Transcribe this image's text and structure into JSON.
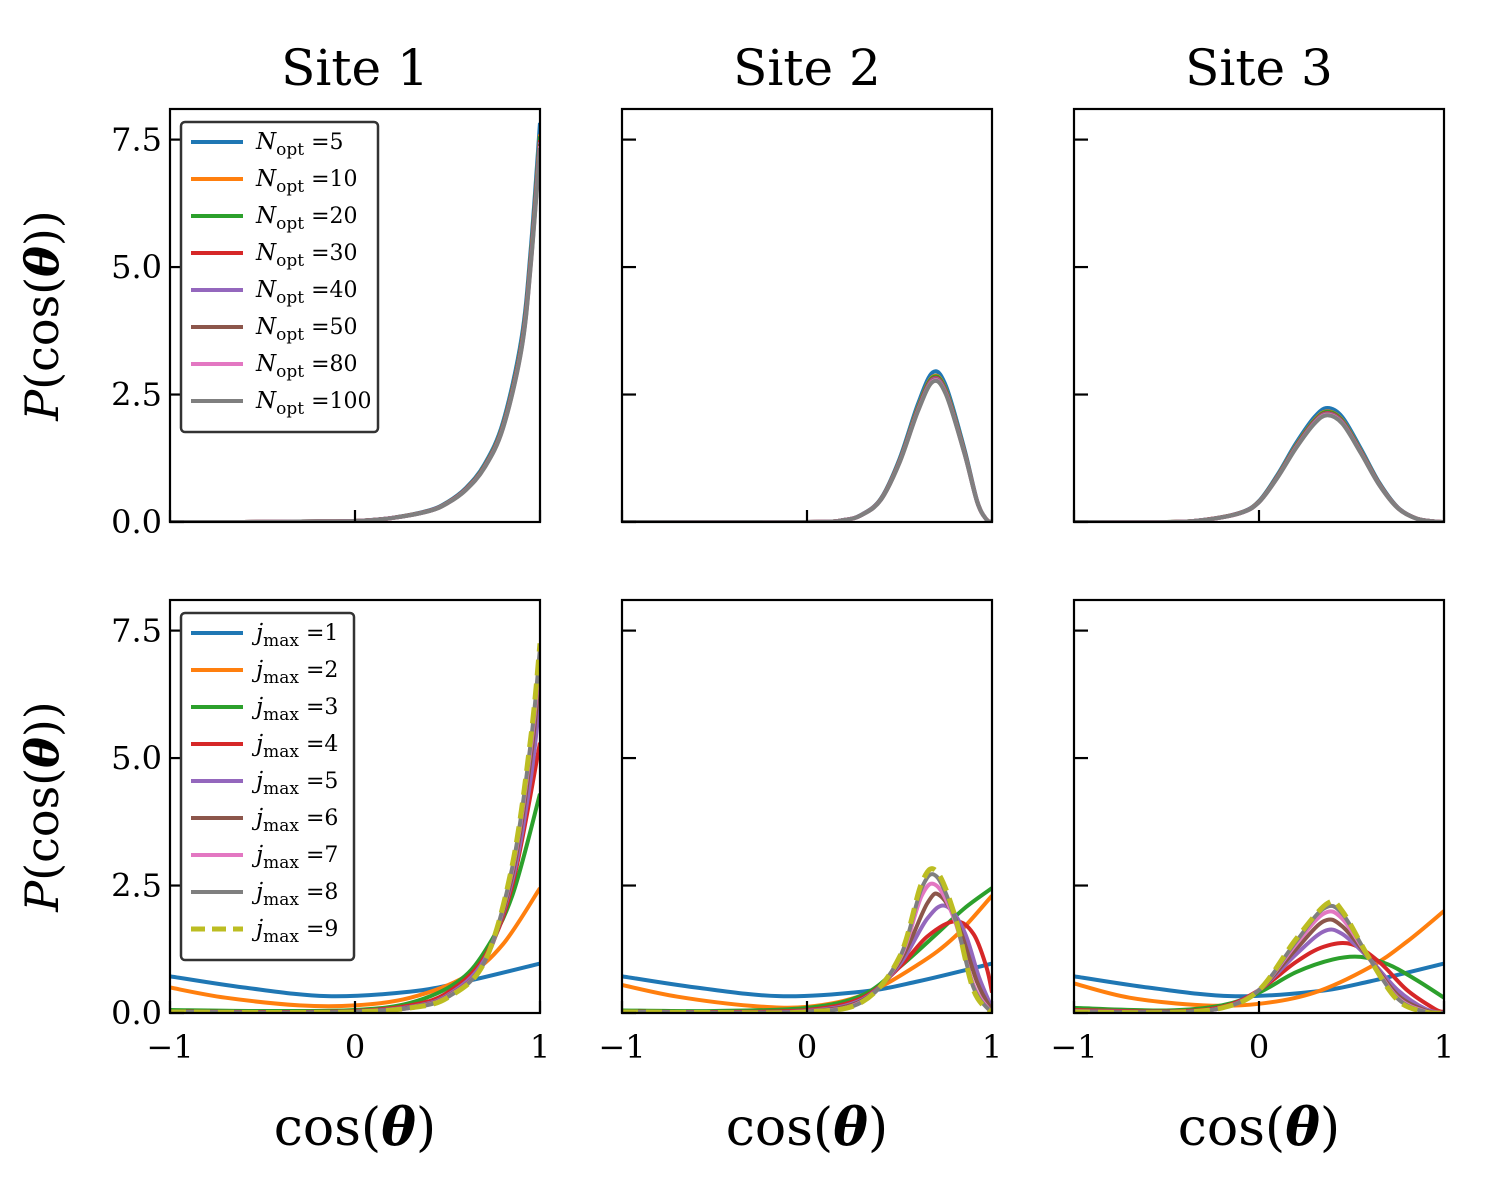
{
  "chart_data": {
    "type": "line",
    "layout": "2x3 grid",
    "column_titles": [
      "Site 1",
      "Site 2",
      "Site 3"
    ],
    "xlabel": "cos(θ)",
    "ylabel": "P(cos(θ))",
    "xlim": [
      -1,
      1
    ],
    "ylim": [
      0,
      8.1
    ],
    "xticks": [
      -1,
      0,
      1
    ],
    "xtick_labels": [
      "−1",
      "0",
      "1"
    ],
    "yticks": [
      0,
      2.5,
      5.0,
      7.5
    ],
    "ytick_labels": [
      "0.0",
      "2.5",
      "5.0",
      "7.5"
    ],
    "legend_position": "upper left",
    "rows": [
      {
        "legend_symbol": "N",
        "legend_subscript": "opt",
        "legend_style": "italic",
        "series": [
          {
            "value": "5",
            "color": "#1f77b4",
            "dash": "solid"
          },
          {
            "value": "10",
            "color": "#ff7f0e",
            "dash": "solid"
          },
          {
            "value": "20",
            "color": "#2ca02c",
            "dash": "solid"
          },
          {
            "value": "30",
            "color": "#d62728",
            "dash": "solid"
          },
          {
            "value": "40",
            "color": "#9467bd",
            "dash": "solid"
          },
          {
            "value": "50",
            "color": "#8c564b",
            "dash": "solid"
          },
          {
            "value": "80",
            "color": "#e377c2",
            "dash": "solid"
          },
          {
            "value": "100",
            "color": "#7f7f7f",
            "dash": "solid"
          }
        ],
        "panels": [
          {
            "site": "Site 1",
            "x": [
              -1,
              -0.6,
              -0.3,
              0,
              0.2,
              0.4,
              0.5,
              0.6,
              0.7,
              0.8,
              0.9,
              0.95,
              1.0
            ],
            "y": [
              0.0,
              0.0,
              0.01,
              0.02,
              0.08,
              0.22,
              0.38,
              0.65,
              1.1,
              1.9,
              3.5,
              5.2,
              7.6
            ]
          },
          {
            "site": "Site 2",
            "x": [
              -1,
              0,
              0.2,
              0.3,
              0.4,
              0.5,
              0.6,
              0.68,
              0.75,
              0.85,
              0.92,
              0.97,
              1.0
            ],
            "y": [
              0.0,
              0.0,
              0.04,
              0.15,
              0.45,
              1.2,
              2.25,
              2.85,
              2.6,
              1.4,
              0.4,
              0.05,
              0.0
            ]
          },
          {
            "site": "Site 3",
            "x": [
              -1,
              -0.5,
              -0.3,
              -0.1,
              0.0,
              0.1,
              0.2,
              0.3,
              0.37,
              0.45,
              0.55,
              0.65,
              0.75,
              0.85,
              0.95,
              1.0
            ],
            "y": [
              0.0,
              0.0,
              0.04,
              0.18,
              0.4,
              0.9,
              1.5,
              2.0,
              2.17,
              2.0,
              1.4,
              0.75,
              0.28,
              0.07,
              0.01,
              0.0
            ]
          }
        ]
      },
      {
        "legend_symbol": "j",
        "legend_subscript": "max",
        "legend_style": "italic",
        "series": [
          {
            "value": "1",
            "color": "#1f77b4",
            "dash": "solid"
          },
          {
            "value": "2",
            "color": "#ff7f0e",
            "dash": "solid"
          },
          {
            "value": "3",
            "color": "#2ca02c",
            "dash": "solid"
          },
          {
            "value": "4",
            "color": "#d62728",
            "dash": "solid"
          },
          {
            "value": "5",
            "color": "#9467bd",
            "dash": "solid"
          },
          {
            "value": "6",
            "color": "#8c564b",
            "dash": "solid"
          },
          {
            "value": "7",
            "color": "#e377c2",
            "dash": "solid"
          },
          {
            "value": "8",
            "color": "#7f7f7f",
            "dash": "solid"
          },
          {
            "value": "9",
            "color": "#bcbd22",
            "dash": "dashed"
          }
        ],
        "panels": [
          {
            "site": "Site 1",
            "curves": [
              {
                "x": [
                  -1,
                  -0.6,
                  -0.15,
                  0.3,
                  0.6,
                  1.0
                ],
                "y": [
                  0.72,
                  0.5,
                  0.33,
                  0.42,
                  0.62,
                  0.97
                ]
              },
              {
                "x": [
                  -1,
                  -0.7,
                  -0.3,
                  0.0,
                  0.3,
                  0.6,
                  0.8,
                  1.0
                ],
                "y": [
                  0.5,
                  0.3,
                  0.15,
                  0.15,
                  0.3,
                  0.72,
                  1.35,
                  2.45
                ]
              },
              {
                "x": [
                  -1,
                  -0.5,
                  0,
                  0.3,
                  0.55,
                  0.7,
                  0.85,
                  1.0
                ],
                "y": [
                  0.06,
                  0.04,
                  0.06,
                  0.2,
                  0.6,
                  1.2,
                  2.3,
                  4.3
                ]
              },
              {
                "x": [
                  -1,
                  -0.5,
                  0,
                  0.3,
                  0.5,
                  0.7,
                  0.85,
                  1.0
                ],
                "y": [
                  0.03,
                  0.02,
                  0.04,
                  0.15,
                  0.4,
                  1.1,
                  2.5,
                  5.3
                ]
              },
              {
                "x": [
                  -1,
                  -0.5,
                  0,
                  0.3,
                  0.5,
                  0.7,
                  0.85,
                  0.95,
                  1.0
                ],
                "y": [
                  0.02,
                  0.01,
                  0.03,
                  0.12,
                  0.35,
                  1.05,
                  2.6,
                  4.6,
                  6.2
                ]
              },
              {
                "x": [
                  -1,
                  -0.5,
                  0,
                  0.3,
                  0.5,
                  0.7,
                  0.85,
                  0.95,
                  1.0
                ],
                "y": [
                  0.02,
                  0.01,
                  0.03,
                  0.11,
                  0.33,
                  1.0,
                  2.7,
                  5.0,
                  6.7
                ]
              },
              {
                "x": [
                  -1,
                  -0.5,
                  0,
                  0.3,
                  0.5,
                  0.7,
                  0.85,
                  0.95,
                  1.0
                ],
                "y": [
                  0.02,
                  0.01,
                  0.02,
                  0.1,
                  0.32,
                  1.0,
                  2.8,
                  5.2,
                  7.0
                ]
              },
              {
                "x": [
                  -1,
                  -0.5,
                  0,
                  0.3,
                  0.5,
                  0.7,
                  0.85,
                  0.95,
                  1.0
                ],
                "y": [
                  0.02,
                  0.01,
                  0.02,
                  0.1,
                  0.31,
                  1.0,
                  2.85,
                  5.3,
                  7.15
                ]
              },
              {
                "x": [
                  -1,
                  -0.5,
                  0,
                  0.3,
                  0.5,
                  0.7,
                  0.85,
                  0.95,
                  1.0
                ],
                "y": [
                  0.02,
                  0.01,
                  0.02,
                  0.1,
                  0.3,
                  1.0,
                  2.9,
                  5.4,
                  7.25
                ]
              }
            ]
          },
          {
            "site": "Site 2",
            "curves": [
              {
                "x": [
                  -1,
                  -0.6,
                  -0.15,
                  0.3,
                  0.6,
                  1.0
                ],
                "y": [
                  0.72,
                  0.5,
                  0.33,
                  0.42,
                  0.62,
                  0.97
                ]
              },
              {
                "x": [
                  -1,
                  -0.7,
                  -0.3,
                  0.0,
                  0.3,
                  0.6,
                  0.8,
                  1.0
                ],
                "y": [
                  0.55,
                  0.32,
                  0.14,
                  0.12,
                  0.35,
                  0.95,
                  1.5,
                  2.3
                ]
              },
              {
                "x": [
                  -1,
                  -0.5,
                  0,
                  0.3,
                  0.5,
                  0.7,
                  0.85,
                  1.0
                ],
                "y": [
                  0.05,
                  0.04,
                  0.1,
                  0.35,
                  0.9,
                  1.55,
                  2.05,
                  2.45
                ]
              },
              {
                "x": [
                  -1,
                  -0.5,
                  0,
                  0.3,
                  0.5,
                  0.65,
                  0.8,
                  0.9,
                  0.97,
                  1.0
                ],
                "y": [
                  0.03,
                  0.02,
                  0.06,
                  0.3,
                  0.9,
                  1.5,
                  1.8,
                  1.55,
                  0.9,
                  0.4
                ]
              },
              {
                "x": [
                  -1,
                  -0.5,
                  0,
                  0.3,
                  0.5,
                  0.65,
                  0.75,
                  0.85,
                  0.93,
                  1.0
                ],
                "y": [
                  0.02,
                  0.01,
                  0.04,
                  0.27,
                  0.95,
                  1.85,
                  2.1,
                  1.6,
                  0.7,
                  0.1
                ]
              },
              {
                "x": [
                  -1,
                  -0.5,
                  0,
                  0.3,
                  0.5,
                  0.65,
                  0.72,
                  0.82,
                  0.92,
                  1.0
                ],
                "y": [
                  0.02,
                  0.01,
                  0.03,
                  0.25,
                  1.0,
                  2.15,
                  2.3,
                  1.7,
                  0.6,
                  0.05
                ]
              },
              {
                "x": [
                  -1,
                  -0.5,
                  0,
                  0.3,
                  0.5,
                  0.62,
                  0.7,
                  0.8,
                  0.9,
                  1.0
                ],
                "y": [
                  0.02,
                  0.01,
                  0.02,
                  0.23,
                  1.05,
                  2.3,
                  2.5,
                  1.8,
                  0.55,
                  0.0
                ]
              },
              {
                "x": [
                  -1,
                  -0.5,
                  0,
                  0.3,
                  0.5,
                  0.62,
                  0.7,
                  0.8,
                  0.9,
                  1.0
                ],
                "y": [
                  0.02,
                  0.01,
                  0.02,
                  0.22,
                  1.08,
                  2.45,
                  2.68,
                  1.85,
                  0.5,
                  0.0
                ]
              },
              {
                "x": [
                  -1,
                  -0.5,
                  0,
                  0.3,
                  0.5,
                  0.62,
                  0.7,
                  0.8,
                  0.9,
                  1.0
                ],
                "y": [
                  0.02,
                  0.01,
                  0.02,
                  0.22,
                  1.1,
                  2.55,
                  2.78,
                  1.9,
                  0.45,
                  0.0
                ]
              }
            ]
          },
          {
            "site": "Site 3",
            "curves": [
              {
                "x": [
                  -1,
                  -0.6,
                  -0.15,
                  0.3,
                  0.6,
                  1.0
                ],
                "y": [
                  0.72,
                  0.5,
                  0.33,
                  0.42,
                  0.62,
                  0.97
                ]
              },
              {
                "x": [
                  -1,
                  -0.7,
                  -0.3,
                  0.0,
                  0.3,
                  0.6,
                  0.8,
                  1.0
                ],
                "y": [
                  0.58,
                  0.3,
                  0.15,
                  0.18,
                  0.4,
                  0.9,
                  1.4,
                  2.0
                ]
              },
              {
                "x": [
                  -1,
                  -0.5,
                  -0.2,
                  0,
                  0.2,
                  0.4,
                  0.55,
                  0.7,
                  0.85,
                  1.0
                ],
                "y": [
                  0.1,
                  0.05,
                  0.15,
                  0.4,
                  0.8,
                  1.05,
                  1.1,
                  0.95,
                  0.65,
                  0.3
                ]
              },
              {
                "x": [
                  -1,
                  -0.5,
                  -0.2,
                  0,
                  0.2,
                  0.35,
                  0.5,
                  0.65,
                  0.8,
                  0.95,
                  1.0
                ],
                "y": [
                  0.06,
                  0.03,
                  0.12,
                  0.45,
                  1.0,
                  1.3,
                  1.35,
                  1.0,
                  0.45,
                  0.08,
                  0.02
                ]
              },
              {
                "x": [
                  -1,
                  -0.5,
                  -0.2,
                  0,
                  0.2,
                  0.35,
                  0.45,
                  0.6,
                  0.75,
                  0.9,
                  1.0
                ],
                "y": [
                  0.04,
                  0.02,
                  0.1,
                  0.45,
                  1.15,
                  1.6,
                  1.55,
                  1.05,
                  0.45,
                  0.08,
                  0.0
                ]
              },
              {
                "x": [
                  -1,
                  -0.5,
                  -0.2,
                  0,
                  0.2,
                  0.35,
                  0.45,
                  0.6,
                  0.75,
                  0.9,
                  1.0
                ],
                "y": [
                  0.03,
                  0.02,
                  0.1,
                  0.45,
                  1.25,
                  1.8,
                  1.7,
                  1.05,
                  0.35,
                  0.05,
                  0.0
                ]
              },
              {
                "x": [
                  -1,
                  -0.5,
                  -0.2,
                  0,
                  0.2,
                  0.35,
                  0.45,
                  0.6,
                  0.75,
                  0.9,
                  1.0
                ],
                "y": [
                  0.02,
                  0.01,
                  0.1,
                  0.45,
                  1.35,
                  1.95,
                  1.85,
                  1.05,
                  0.3,
                  0.03,
                  0.0
                ]
              },
              {
                "x": [
                  -1,
                  -0.5,
                  -0.2,
                  0,
                  0.2,
                  0.35,
                  0.45,
                  0.6,
                  0.75,
                  0.9,
                  1.0
                ],
                "y": [
                  0.02,
                  0.01,
                  0.1,
                  0.45,
                  1.4,
                  2.05,
                  1.95,
                  1.05,
                  0.28,
                  0.02,
                  0.0
                ]
              },
              {
                "x": [
                  -1,
                  -0.5,
                  -0.2,
                  0,
                  0.2,
                  0.37,
                  0.45,
                  0.6,
                  0.75,
                  0.9,
                  1.0
                ],
                "y": [
                  0.02,
                  0.01,
                  0.1,
                  0.45,
                  1.45,
                  2.15,
                  2.0,
                  1.05,
                  0.25,
                  0.02,
                  0.0
                ]
              }
            ]
          }
        ]
      }
    ]
  }
}
